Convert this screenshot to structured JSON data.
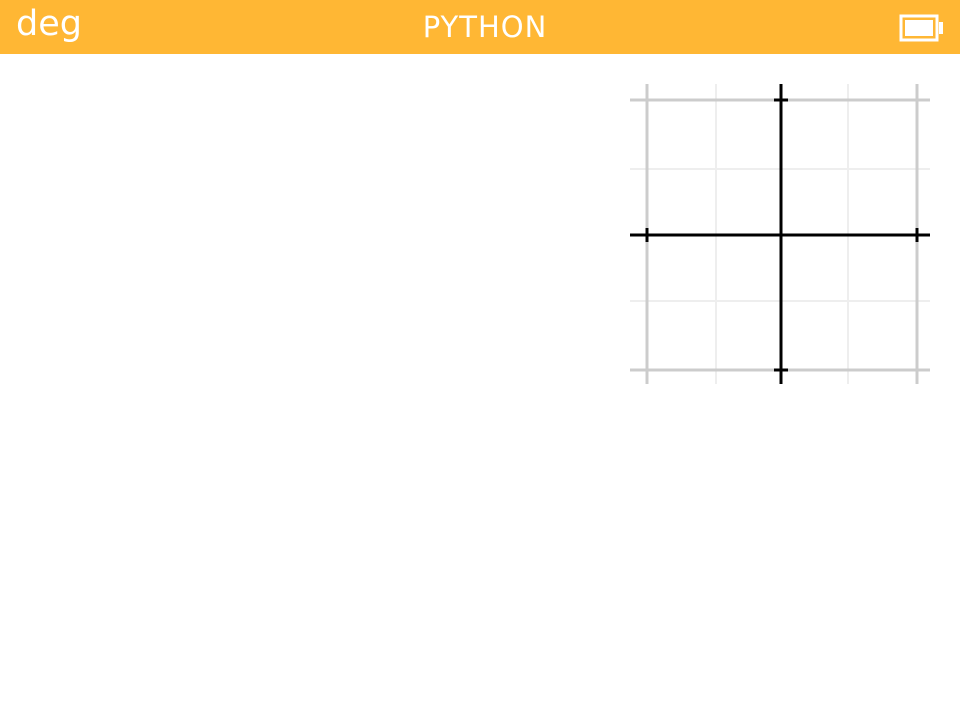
{
  "status_bar": {
    "angle_unit": "deg",
    "app_title": "PYTHON",
    "battery_icon": "battery-icon",
    "background_color": "#FFB734",
    "text_color": "#FFFFFF"
  },
  "plot": {
    "grid_icon": "cartesian-grid",
    "axis_color": "#000000",
    "major_grid_color": "#CCCCCC",
    "minor_grid_color": "#EEEEEE"
  }
}
